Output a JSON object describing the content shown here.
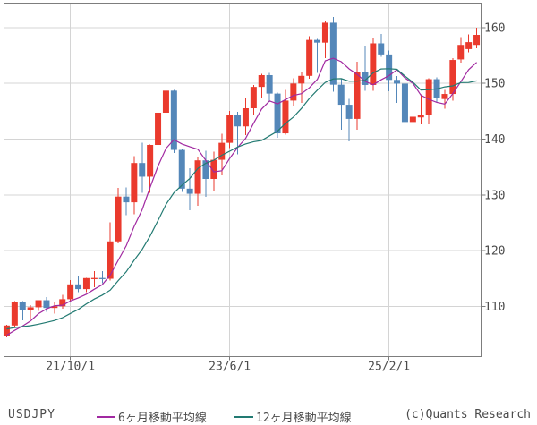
{
  "footer": {
    "symbol": "USDJPY",
    "copyright": "(c)Quants Research"
  },
  "legend": {
    "ma6_label": "6ヶ月移動平均線",
    "ma12_label": "12ヶ月移動平均線"
  },
  "chart_data": {
    "type": "candlestick",
    "symbol": "USDJPY",
    "frequency": "monthly",
    "title": "",
    "xlabel": "",
    "ylabel": "",
    "grid": true,
    "y_axis_side": "right",
    "y_ticks": [
      110,
      120,
      130,
      140,
      150,
      160
    ],
    "y_top_value": 164.4,
    "y_bottom_value": 101.0,
    "x_tick_labels": [
      {
        "index": 8,
        "label": "21/10/1"
      },
      {
        "index": 28,
        "label": "23/6/1"
      },
      {
        "index": 48,
        "label": "25/2/1"
      }
    ],
    "months": [
      "2021-02",
      "2021-03",
      "2021-04",
      "2021-05",
      "2021-06",
      "2021-07",
      "2021-08",
      "2021-09",
      "2021-10",
      "2021-11",
      "2021-12",
      "2022-01",
      "2022-02",
      "2022-03",
      "2022-04",
      "2022-05",
      "2022-06",
      "2022-07",
      "2022-08",
      "2022-09",
      "2022-10",
      "2022-11",
      "2022-12",
      "2023-01",
      "2023-02",
      "2023-03",
      "2023-04",
      "2023-05",
      "2023-06",
      "2023-07",
      "2023-08",
      "2023-09",
      "2023-10",
      "2023-11",
      "2023-12",
      "2024-01",
      "2024-02",
      "2024-03",
      "2024-04",
      "2024-05",
      "2024-06",
      "2024-07",
      "2024-08",
      "2024-09",
      "2024-10",
      "2024-11",
      "2024-12",
      "2025-01",
      "2025-02",
      "2025-03",
      "2025-04",
      "2025-05",
      "2025-06",
      "2025-07",
      "2025-08",
      "2025-09",
      "2025-10",
      "2025-11",
      "2025-12",
      "2026-01"
    ],
    "ohlc": [
      [
        104.68,
        106.69,
        104.45,
        106.57
      ],
      [
        106.57,
        110.97,
        106.37,
        110.72
      ],
      [
        110.72,
        110.96,
        107.48,
        109.31
      ],
      [
        109.31,
        110.2,
        107.64,
        109.84
      ],
      [
        109.84,
        111.11,
        109.19,
        111.11
      ],
      [
        111.11,
        111.66,
        109.06,
        109.72
      ],
      [
        109.72,
        110.8,
        108.72,
        110.02
      ],
      [
        110.02,
        112.08,
        109.59,
        111.29
      ],
      [
        111.29,
        114.69,
        110.82,
        113.95
      ],
      [
        113.95,
        115.52,
        112.53,
        113.1
      ],
      [
        113.1,
        115.1,
        112.53,
        115.08
      ],
      [
        115.08,
        116.34,
        113.47,
        115.1
      ],
      [
        115.1,
        116.33,
        114.16,
        114.96
      ],
      [
        114.96,
        125.1,
        114.65,
        121.66
      ],
      [
        121.66,
        131.25,
        121.28,
        129.7
      ],
      [
        129.7,
        131.34,
        126.36,
        128.67
      ],
      [
        128.67,
        136.99,
        126.5,
        135.72
      ],
      [
        135.72,
        139.38,
        130.4,
        133.27
      ],
      [
        133.27,
        139.06,
        130.41,
        138.96
      ],
      [
        138.96,
        145.9,
        137.5,
        144.74
      ],
      [
        144.74,
        151.94,
        143.52,
        148.7
      ],
      [
        148.7,
        148.84,
        137.5,
        138.07
      ],
      [
        138.07,
        138.17,
        130.56,
        131.12
      ],
      [
        131.12,
        134.77,
        127.22,
        130.2
      ],
      [
        130.2,
        136.91,
        128.08,
        136.2
      ],
      [
        136.2,
        137.91,
        129.64,
        132.86
      ],
      [
        132.86,
        137.77,
        130.62,
        136.3
      ],
      [
        136.3,
        140.93,
        133.5,
        139.34
      ],
      [
        139.34,
        145.07,
        138.43,
        144.31
      ],
      [
        144.31,
        144.91,
        137.24,
        142.29
      ],
      [
        142.29,
        147.37,
        140.69,
        145.54
      ],
      [
        145.54,
        149.71,
        144.45,
        149.37
      ],
      [
        149.37,
        151.72,
        147.3,
        151.48
      ],
      [
        151.48,
        151.91,
        146.67,
        148.17
      ],
      [
        148.17,
        148.34,
        140.25,
        141.04
      ],
      [
        141.04,
        148.8,
        140.8,
        146.92
      ],
      [
        146.92,
        150.88,
        145.89,
        149.98
      ],
      [
        149.98,
        151.97,
        146.48,
        151.35
      ],
      [
        151.35,
        158.44,
        150.81,
        157.8
      ],
      [
        157.8,
        157.99,
        151.86,
        157.31
      ],
      [
        157.31,
        161.28,
        154.55,
        160.88
      ],
      [
        160.88,
        161.95,
        148.51,
        149.77
      ],
      [
        149.77,
        150.89,
        141.7,
        146.17
      ],
      [
        146.17,
        147.21,
        139.58,
        143.63
      ],
      [
        143.63,
        153.88,
        141.65,
        152.03
      ],
      [
        152.03,
        156.75,
        148.65,
        149.72
      ],
      [
        149.72,
        158.08,
        148.64,
        157.18
      ],
      [
        157.18,
        158.88,
        154.78,
        155.19
      ],
      [
        155.19,
        155.89,
        148.57,
        150.63
      ],
      [
        150.63,
        151.31,
        146.54,
        149.96
      ],
      [
        149.96,
        150.49,
        139.89,
        143.07
      ],
      [
        143.07,
        148.65,
        142.12,
        144.02
      ],
      [
        143.9,
        148.03,
        142.68,
        144.4
      ],
      [
        144.4,
        150.92,
        142.69,
        150.75
      ],
      [
        150.75,
        151.05,
        146.6,
        147.4
      ],
      [
        147.2,
        148.8,
        145.5,
        148.1
      ],
      [
        148.1,
        154.5,
        146.9,
        154.2
      ],
      [
        154.3,
        158.3,
        153.7,
        156.9
      ],
      [
        156.15,
        158.8,
        155.6,
        157.4
      ],
      [
        156.9,
        160.0,
        156.3,
        158.7
      ]
    ],
    "series": [
      {
        "name": "6ヶ月移動平均線",
        "key": "ma6",
        "values": [
          104.83,
          105.7,
          106.47,
          107.4,
          108.71,
          109.55,
          110.12,
          110.22,
          110.99,
          111.53,
          112.19,
          113.09,
          113.91,
          115.64,
          118.27,
          120.86,
          124.3,
          127.33,
          131.33,
          135.18,
          138.34,
          139.91,
          139.14,
          138.63,
          138.17,
          136.19,
          134.13,
          134.34,
          136.54,
          138.55,
          140.11,
          142.86,
          145.39,
          146.86,
          146.32,
          147.09,
          147.83,
          148.16,
          149.21,
          150.73,
          154.04,
          154.52,
          153.88,
          152.59,
          151.63,
          150.37,
          149.75,
          150.65,
          151.4,
          152.45,
          150.96,
          150.01,
          147.88,
          147.14,
          146.6,
          146.29,
          148.15,
          150.29,
          152.46,
          153.78
        ]
      },
      {
        "name": "12ヶ月移動平均線",
        "key": "ma12",
        "values": [
          105.96,
          106.2,
          106.37,
          106.54,
          106.81,
          107.13,
          107.47,
          107.96,
          108.73,
          109.46,
          110.45,
          111.32,
          112.02,
          112.93,
          114.63,
          116.2,
          118.25,
          120.21,
          122.62,
          125.41,
          128.31,
          130.39,
          131.72,
          132.98,
          134.75,
          135.68,
          136.23,
          137.12,
          137.84,
          138.59,
          139.14,
          139.53,
          139.76,
          140.6,
          141.43,
          142.82,
          143.97,
          145.51,
          147.3,
          148.8,
          150.18,
          150.8,
          150.85,
          150.38,
          150.42,
          150.55,
          151.9,
          152.58,
          152.64,
          152.52,
          151.3,
          150.19,
          148.81,
          148.9,
          149.0,
          149.37,
          149.55,
          150.15,
          150.17,
          150.46
        ]
      }
    ],
    "colors": {
      "up": "#ea3a2d",
      "down": "#5487b9",
      "ma6": "#a129a1",
      "ma12": "#227a72",
      "grid": "#d4d4d4",
      "frame": "#7d7d7d",
      "text": "#4b4b4b",
      "background": "#ffffff"
    }
  }
}
